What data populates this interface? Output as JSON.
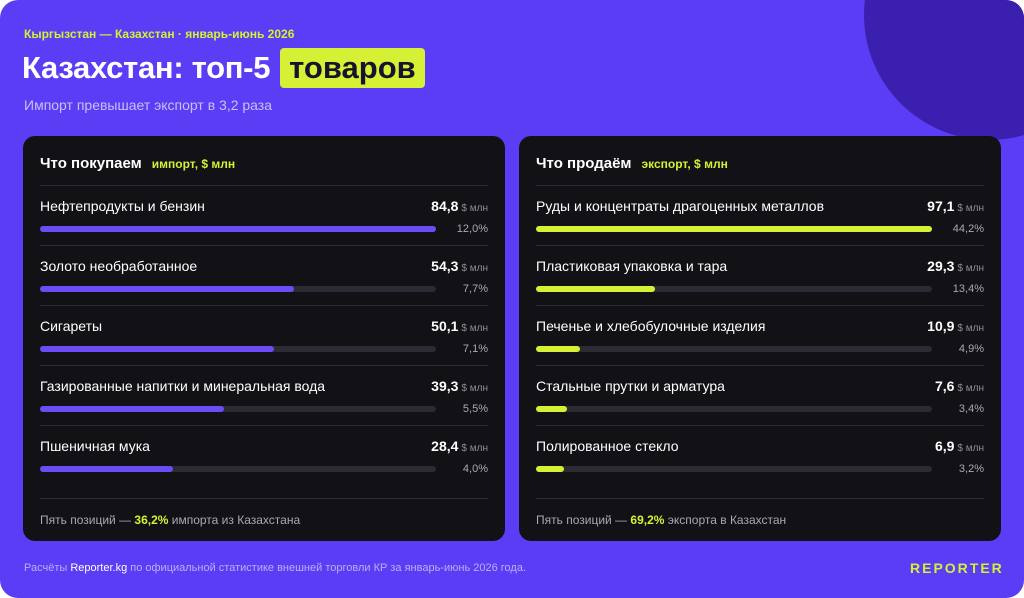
{
  "header": {
    "kicker": "Кыргызстан — Казахстан · январь-июнь 2026",
    "title_main": "Казахстан: топ-5",
    "title_highlight": "товаров",
    "subtitle": "Импорт превышает экспорт в 3,2 раза"
  },
  "colors": {
    "background": "#5b3df5",
    "accent": "#d6f035",
    "import_bar": "#6b4cf6",
    "export_bar": "#d6f035",
    "panel": "#111116"
  },
  "chart_data": [
    {
      "type": "bar",
      "orientation": "horizontal",
      "title": "Что покупаем",
      "unit_label": "импорт, $ млн",
      "value_unit": "$ млн",
      "max_value": 84.8,
      "categories": [
        "Нефтепродукты и бензин",
        "Золото необработанное",
        "Сигареты",
        "Газированные напитки и минеральная вода",
        "Пшеничная мука"
      ],
      "values": [
        84.8,
        54.3,
        50.1,
        39.3,
        28.4
      ],
      "value_labels": [
        "84,8",
        "54,3",
        "50,1",
        "39,3",
        "28,4"
      ],
      "shares": [
        "12,0%",
        "7,7%",
        "7,1%",
        "5,5%",
        "4,0%"
      ],
      "footer_prefix": "Пять позиций — ",
      "footer_highlight": "36,2%",
      "footer_suffix": " импорта из Казахстана"
    },
    {
      "type": "bar",
      "orientation": "horizontal",
      "title": "Что продаём",
      "unit_label": "экспорт, $ млн",
      "value_unit": "$ млн",
      "max_value": 97.1,
      "categories": [
        "Руды и концентраты драгоценных металлов",
        "Пластиковая упаковка и тара",
        "Печенье и хлебобулочные изделия",
        "Стальные прутки и арматура",
        "Полированное стекло"
      ],
      "values": [
        97.1,
        29.3,
        10.9,
        7.6,
        6.9
      ],
      "value_labels": [
        "97,1",
        "29,3",
        "10,9",
        "7,6",
        "6,9"
      ],
      "shares": [
        "44,2%",
        "13,4%",
        "4,9%",
        "3,4%",
        "3,2%"
      ],
      "footer_prefix": "Пять позиций — ",
      "footer_highlight": "69,2%",
      "footer_suffix": " экспорта в Казахстан"
    }
  ],
  "footer": {
    "note_prefix": "Расчёты ",
    "note_brand": "Reporter.kg",
    "note_suffix": " по официальной статистике внешней торговли КР за январь-июнь 2026 года.",
    "logo": "REPORTER"
  }
}
